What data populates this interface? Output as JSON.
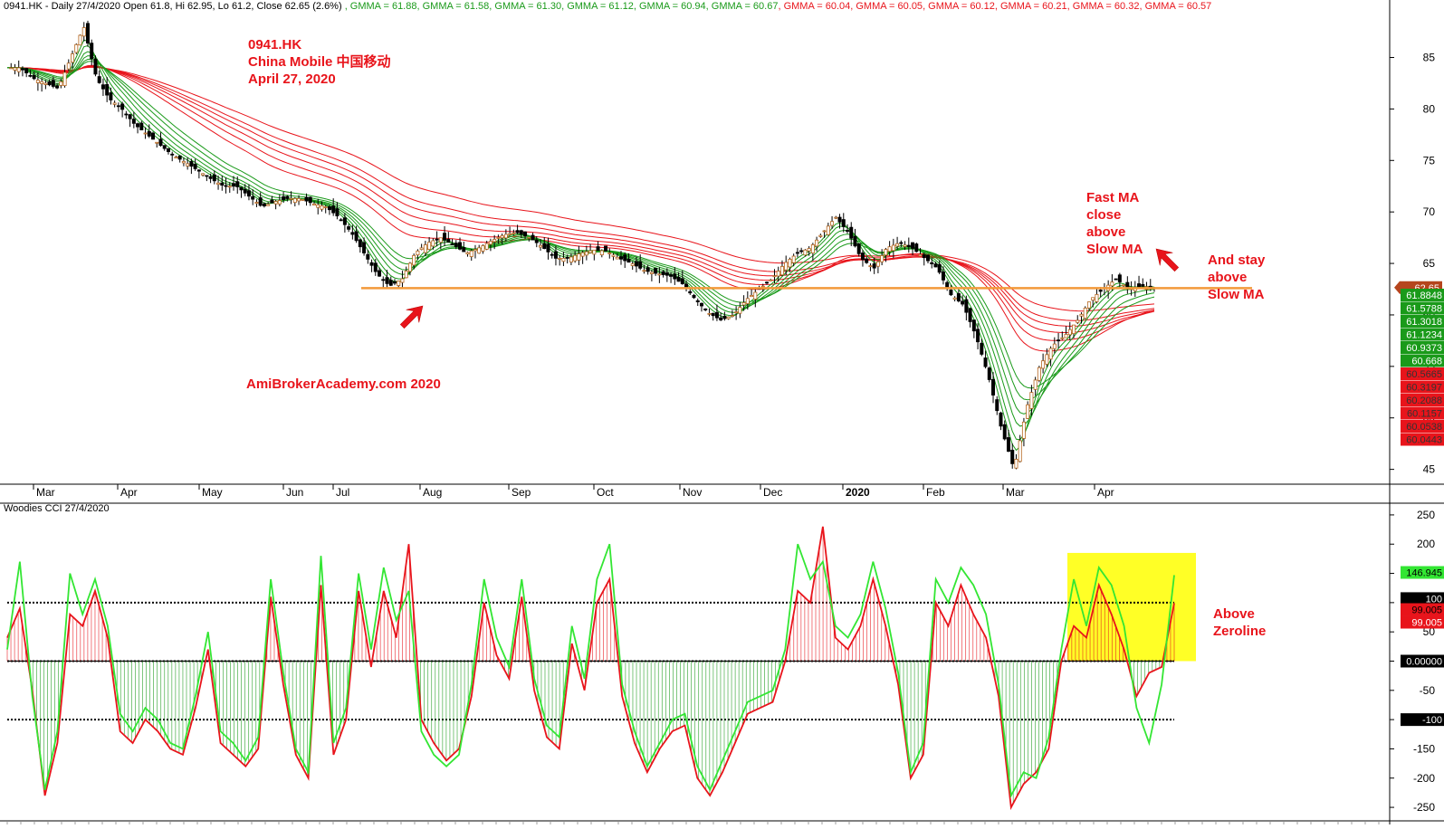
{
  "header": {
    "title": "0941.HK - Daily 27/4/2020 Open 61.8, Hi 62.95, Lo 61.2, Close 62.65 (2.6%)",
    "gmma": [
      {
        "label": "GMMA = 61.88",
        "color": "#1a9a1a"
      },
      {
        "label": "GMMA = 61.58",
        "color": "#1a9a1a"
      },
      {
        "label": "GMMA = 61.30",
        "color": "#1a9a1a"
      },
      {
        "label": "GMMA = 61.12",
        "color": "#1a9a1a"
      },
      {
        "label": "GMMA = 60.94",
        "color": "#1a9a1a"
      },
      {
        "label": "GMMA = 60.67",
        "color": "#1a9a1a"
      },
      {
        "label": "GMMA = 60.04",
        "color": "#e8141b"
      },
      {
        "label": "GMMA = 60.05",
        "color": "#e8141b"
      },
      {
        "label": "GMMA = 60.12",
        "color": "#e8141b"
      },
      {
        "label": "GMMA = 60.21",
        "color": "#e8141b"
      },
      {
        "label": "GMMA = 60.32",
        "color": "#e8141b"
      },
      {
        "label": "GMMA = 60.57",
        "color": "#e8141b"
      }
    ]
  },
  "annotations": {
    "ticker_block": [
      "0941.HK",
      "China Mobile  中国移动",
      "April 27, 2020"
    ],
    "watermark": "AmiBrokerAcademy.com  2020",
    "fast_ma": [
      "Fast MA",
      "close",
      "above",
      "Slow MA"
    ],
    "stay_above": [
      "And stay",
      "above",
      "Slow MA"
    ],
    "above_zero": [
      "Above",
      "Zeroline"
    ]
  },
  "cci_panel": {
    "title": "Woodies CCI  27/4/2020"
  },
  "colors": {
    "up": "#1a9a1a",
    "down": "#e8141b",
    "support": "#f39a3a",
    "highlight": "#ffff00"
  },
  "chart_data": [
    {
      "type": "candlestick",
      "title": "0941.HK - Daily 27/4/2020",
      "x_ticks": [
        "Mar",
        "Apr",
        "May",
        "Jun",
        "Jul",
        "Aug",
        "Sep",
        "Oct",
        "Nov",
        "Dec",
        "2020",
        "Feb",
        "Mar",
        "Apr"
      ],
      "y_ticks": [
        45,
        50,
        55,
        60,
        65,
        70,
        75,
        80,
        85
      ],
      "ylim": [
        44,
        89
      ],
      "support_level": 62.6,
      "close_series": [
        84,
        84,
        83,
        82.5,
        82,
        85,
        88,
        83,
        81,
        80,
        78.5,
        77.5,
        76.5,
        75.5,
        74.8,
        74,
        73.2,
        72.5,
        72.5,
        71.5,
        70.5,
        71,
        71.3,
        71.3,
        70.8,
        70.5,
        69.5,
        68,
        66,
        64,
        62.8,
        63.5,
        66,
        67,
        67.5,
        66.8,
        66,
        66.5,
        67.2,
        67.8,
        68,
        67.5,
        66.6,
        65.5,
        65.5,
        66,
        66.3,
        66.2,
        65.5,
        65,
        64.3,
        64,
        63.8,
        63,
        61.5,
        60.2,
        59.5,
        60,
        61.5,
        62.5,
        63.5,
        65,
        66,
        66.5,
        68,
        69.5,
        68,
        65.5,
        64.5,
        66.5,
        67,
        66.5,
        65.5,
        64.5,
        62,
        61,
        58,
        54,
        49,
        45,
        51,
        55,
        57,
        58,
        59.5,
        61.5,
        62.5,
        63.5,
        62.5,
        62.8,
        62.65
      ],
      "last_price": "62.65",
      "price_tags": [
        "61.8848",
        "61.5788",
        "61.3018",
        "61.1234",
        "60.9373",
        "60.668",
        "60.5665",
        "60.3197",
        "60.2088",
        "60.1157",
        "60.0538",
        "60.0443"
      ]
    },
    {
      "type": "line",
      "title": "Woodies CCI  27/4/2020",
      "x_ticks": [
        "Mar",
        "Apr",
        "May",
        "Jun",
        "Jul",
        "Aug",
        "Sep",
        "Oct",
        "Nov",
        "Dec",
        "2020",
        "Feb",
        "Mar",
        "Apr"
      ],
      "y_ticks": [
        250,
        200,
        150,
        100,
        50,
        0,
        -50,
        -100,
        -150,
        -200,
        -250
      ],
      "ylim": [
        -270,
        270
      ],
      "reference_lines": [
        100,
        0,
        -100
      ],
      "series": [
        {
          "color": "#1a9a1a",
          "values": [
            20,
            170,
            -60,
            -220,
            -120,
            150,
            80,
            140,
            60,
            -90,
            -120,
            -80,
            -100,
            -140,
            -150,
            -60,
            50,
            -120,
            -140,
            -170,
            -130,
            140,
            -20,
            -150,
            -190,
            180,
            -140,
            -80,
            150,
            20,
            160,
            70,
            120,
            -120,
            -160,
            -180,
            -160,
            -40,
            140,
            40,
            -10,
            140,
            -30,
            -110,
            -130,
            60,
            -30,
            140,
            200,
            -40,
            -120,
            -180,
            -140,
            -100,
            -90,
            -180,
            -220,
            -170,
            -120,
            -70,
            -60,
            -50,
            20,
            200,
            140,
            170,
            60,
            40,
            80,
            170,
            90,
            -20,
            -190,
            -140,
            140,
            100,
            160,
            130,
            80,
            -40,
            -230,
            -190,
            -200,
            -130,
            20,
            140,
            60,
            160,
            130,
            60,
            -80,
            -140,
            -40,
            146.945
          ]
        },
        {
          "color": "#e8141b",
          "values": [
            40,
            90,
            -50,
            -230,
            -140,
            80,
            60,
            120,
            40,
            -120,
            -140,
            -100,
            -120,
            -150,
            -160,
            -80,
            20,
            -140,
            -160,
            -180,
            -150,
            110,
            -40,
            -160,
            -200,
            130,
            -160,
            -100,
            120,
            -10,
            120,
            40,
            200,
            -100,
            -140,
            -170,
            -150,
            -60,
            100,
            10,
            -30,
            110,
            -50,
            -130,
            -150,
            30,
            -50,
            100,
            140,
            -60,
            -140,
            -190,
            -150,
            -120,
            -110,
            -200,
            -230,
            -190,
            -140,
            -90,
            -80,
            -70,
            0,
            120,
            100,
            230,
            40,
            20,
            60,
            140,
            60,
            -40,
            -200,
            -160,
            100,
            60,
            130,
            80,
            40,
            -60,
            -250,
            -210,
            -190,
            -150,
            0,
            60,
            40,
            130,
            80,
            20,
            -60,
            -20,
            -10,
            99.005
          ]
        }
      ],
      "value_tags": {
        "signal": "146.945",
        "level_100": "100",
        "main": "99.005",
        "zero": "0.00000",
        "level_minus_100": "-100"
      }
    }
  ]
}
